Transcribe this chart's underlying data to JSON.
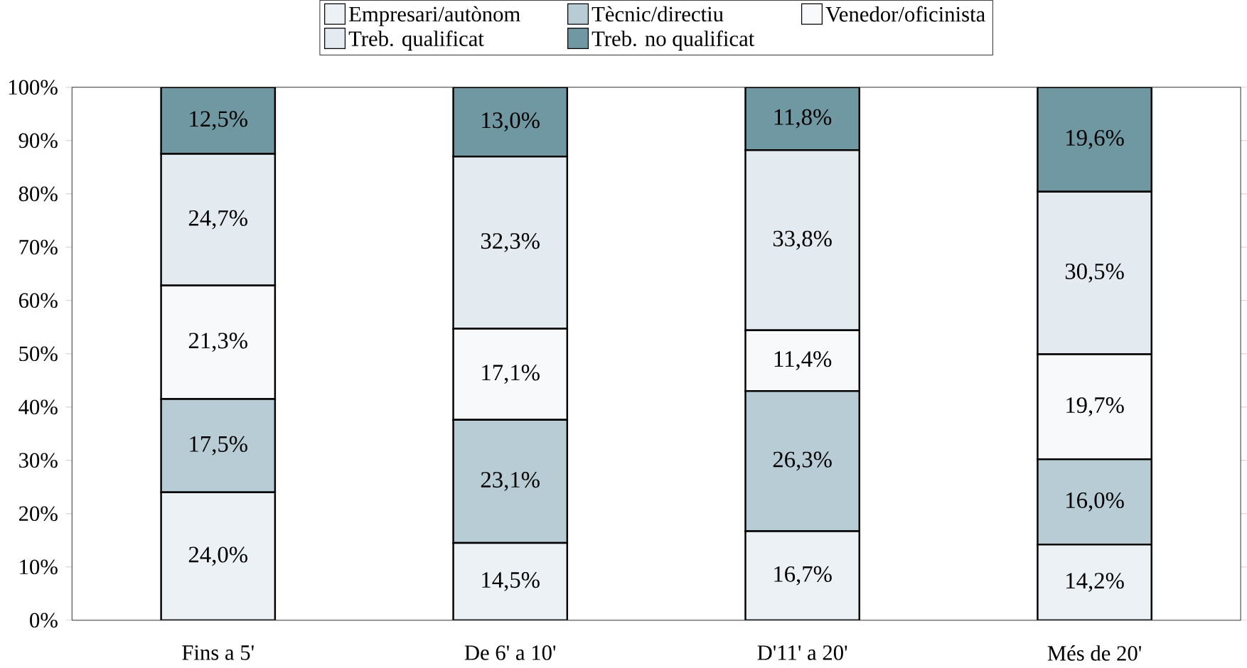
{
  "chart_data": {
    "type": "bar",
    "stacked": true,
    "legend": "top",
    "categories": [
      "Fins a 5'",
      "De 6' a 10'",
      "D'11' a 20'",
      "Més de 20'"
    ],
    "ylim": [
      0,
      100
    ],
    "yticks": [
      {
        "value": 0,
        "label": "0%"
      },
      {
        "value": 10,
        "label": "10%"
      },
      {
        "value": 20,
        "label": "20%"
      },
      {
        "value": 30,
        "label": "30%"
      },
      {
        "value": 40,
        "label": "40%"
      },
      {
        "value": 50,
        "label": "50%"
      },
      {
        "value": 60,
        "label": "60%"
      },
      {
        "value": 70,
        "label": "70%"
      },
      {
        "value": 80,
        "label": "80%"
      },
      {
        "value": 90,
        "label": "90%"
      },
      {
        "value": 100,
        "label": "100%"
      }
    ],
    "series": [
      {
        "name": "Empresari/autònom",
        "color": "#ecf1f5",
        "values": [
          24.0,
          14.5,
          16.7,
          14.2
        ],
        "value_labels": [
          "24,0%",
          "14,5%",
          "16,7%",
          "14,2%"
        ]
      },
      {
        "name": "Tècnic/directiu",
        "color": "#b7ccd4",
        "values": [
          17.5,
          23.1,
          26.3,
          16.0
        ],
        "value_labels": [
          "17,5%",
          "23,1%",
          "26,3%",
          "16,0%"
        ]
      },
      {
        "name": "Venedor/oficinista",
        "color": "#f7f9fb",
        "values": [
          21.3,
          17.1,
          11.4,
          19.7
        ],
        "value_labels": [
          "21,3%",
          "17,1%",
          "11,4%",
          "19,7%"
        ]
      },
      {
        "name": "Treb. qualificat",
        "color": "#e3ebf0",
        "values": [
          24.7,
          32.3,
          33.8,
          30.5
        ],
        "value_labels": [
          "24,7%",
          "32,3%",
          "33,8%",
          "30,5%"
        ]
      },
      {
        "name": "Treb. no qualificat",
        "color": "#6f98a3",
        "values": [
          12.5,
          13.0,
          11.8,
          19.6
        ],
        "value_labels": [
          "12,5%",
          "13,0%",
          "11,8%",
          "19,6%"
        ]
      }
    ]
  }
}
